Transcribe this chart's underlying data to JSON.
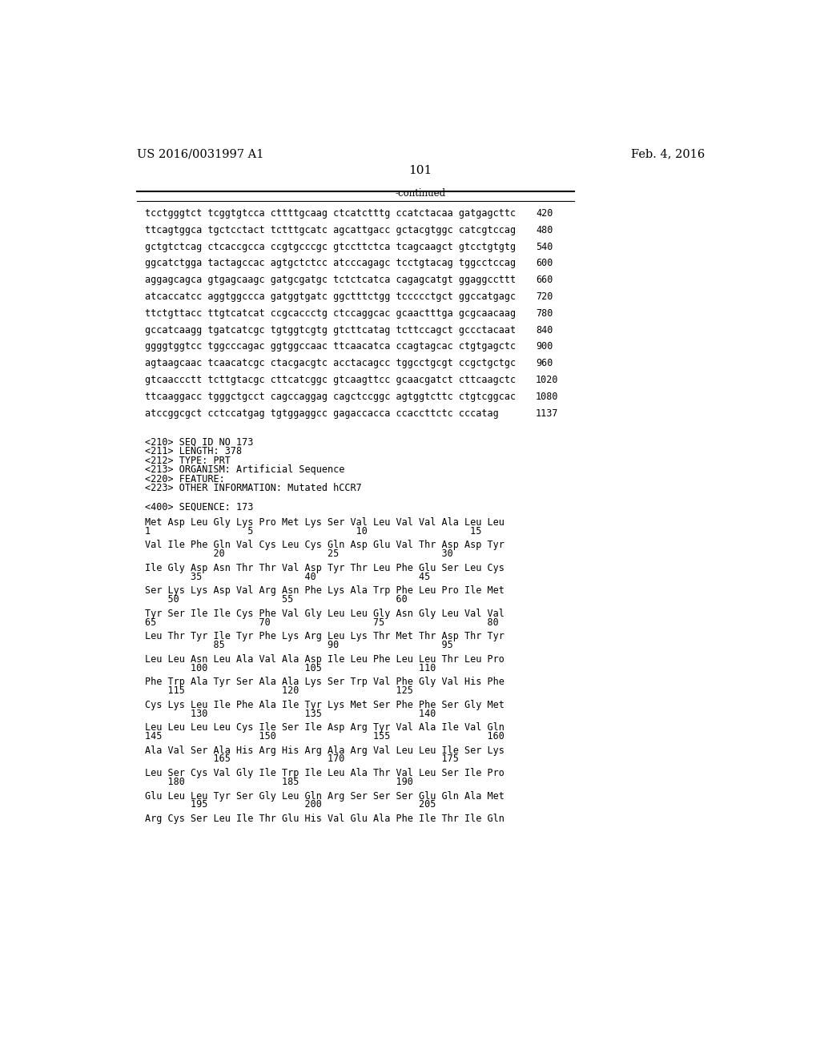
{
  "header_left": "US 2016/0031997 A1",
  "header_right": "Feb. 4, 2016",
  "page_number": "101",
  "continued_label": "-continued",
  "background_color": "#ffffff",
  "text_color": "#000000",
  "font_size_header": 10.5,
  "font_size_body": 8.5,
  "font_size_page": 11,
  "sequence_lines": [
    [
      "tcctgggtct tcggtgtcca cttttgcaag ctcatctttg ccatctacaa gatgagcttc",
      "420"
    ],
    [
      "ttcagtggca tgctcctact tctttgcatc agcattgacc gctacgtggc catcgtccag",
      "480"
    ],
    [
      "gctgtctcag ctcaccgcca ccgtgcccgc gtccttctca tcagcaagct gtcctgtgtg",
      "540"
    ],
    [
      "ggcatctgga tactagccac agtgctctcc atcccagagc tcctgtacag tggcctccag",
      "600"
    ],
    [
      "aggagcagca gtgagcaagc gatgcgatgc tctctcatca cagagcatgt ggaggccttt",
      "660"
    ],
    [
      "atcaccatcc aggtggccca gatggtgatc ggctttctgg tccccctgct ggccatgagc",
      "720"
    ],
    [
      "ttctgttacc ttgtcatcat ccgcaccctg ctccaggcac gcaactttga gcgcaacaag",
      "780"
    ],
    [
      "gccatcaagg tgatcatcgc tgtggtcgtg gtcttcatag tcttccagct gccctacaat",
      "840"
    ],
    [
      "ggggtggtcc tggcccagac ggtggccaac ttcaacatca ccagtagcac ctgtgagctc",
      "900"
    ],
    [
      "agtaagcaac tcaacatcgc ctacgacgtc acctacagcc tggcctgcgt ccgctgctgc",
      "960"
    ],
    [
      "gtcaaccctt tcttgtacgc cttcatcggc gtcaagttcc gcaacgatct cttcaagctc",
      "1020"
    ],
    [
      "ttcaaggacc tgggctgcct cagccaggag cagctccggc agtggtcttc ctgtcggcac",
      "1080"
    ],
    [
      "atccggcgct cctccatgag tgtggaggcc gagaccacca ccaccttctc cccatag",
      "1137"
    ]
  ],
  "seq_info_lines": [
    "<210> SEQ ID NO 173",
    "<211> LENGTH: 378",
    "<212> TYPE: PRT",
    "<213> ORGANISM: Artificial Sequence",
    "<220> FEATURE:",
    "<223> OTHER INFORMATION: Mutated hCCR7"
  ],
  "sequence_label": "<400> SEQUENCE: 173",
  "protein_lines": [
    {
      "amino": "Met Asp Leu Gly Lys Pro Met Lys Ser Val Leu Val Val Ala Leu Leu",
      "numbers": "1                 5                  10                  15"
    },
    {
      "amino": "Val Ile Phe Gln Val Cys Leu Cys Gln Asp Glu Val Thr Asp Asp Tyr",
      "numbers": "            20                  25                  30"
    },
    {
      "amino": "Ile Gly Asp Asn Thr Thr Val Asp Tyr Thr Leu Phe Glu Ser Leu Cys",
      "numbers": "        35                  40                  45"
    },
    {
      "amino": "Ser Lys Lys Asp Val Arg Asn Phe Lys Ala Trp Phe Leu Pro Ile Met",
      "numbers": "    50                  55                  60"
    },
    {
      "amino": "Tyr Ser Ile Ile Cys Phe Val Gly Leu Leu Gly Asn Gly Leu Val Val",
      "numbers": "65                  70                  75                  80"
    },
    {
      "amino": "Leu Thr Tyr Ile Tyr Phe Lys Arg Leu Lys Thr Met Thr Asp Thr Tyr",
      "numbers": "            85                  90                  95"
    },
    {
      "amino": "Leu Leu Asn Leu Ala Val Ala Asp Ile Leu Phe Leu Leu Thr Leu Pro",
      "numbers": "        100                 105                 110"
    },
    {
      "amino": "Phe Trp Ala Tyr Ser Ala Ala Lys Ser Trp Val Phe Gly Val His Phe",
      "numbers": "    115                 120                 125"
    },
    {
      "amino": "Cys Lys Leu Ile Phe Ala Ile Tyr Lys Met Ser Phe Phe Ser Gly Met",
      "numbers": "        130                 135                 140"
    },
    {
      "amino": "Leu Leu Leu Leu Cys Ile Ser Ile Asp Arg Tyr Val Ala Ile Val Gln",
      "numbers": "145                 150                 155                 160"
    },
    {
      "amino": "Ala Val Ser Ala His Arg His Arg Ala Arg Val Leu Leu Ile Ser Lys",
      "numbers": "            165                 170                 175"
    },
    {
      "amino": "Leu Ser Cys Val Gly Ile Trp Ile Leu Ala Thr Val Leu Ser Ile Pro",
      "numbers": "    180                 185                 190"
    },
    {
      "amino": "Glu Leu Leu Tyr Ser Gly Leu Gln Arg Ser Ser Ser Glu Gln Ala Met",
      "numbers": "        195                 200                 205"
    },
    {
      "amino": "Arg Cys Ser Leu Ile Thr Glu His Val Glu Ala Phe Ile Thr Ile Gln",
      "numbers": ""
    }
  ]
}
